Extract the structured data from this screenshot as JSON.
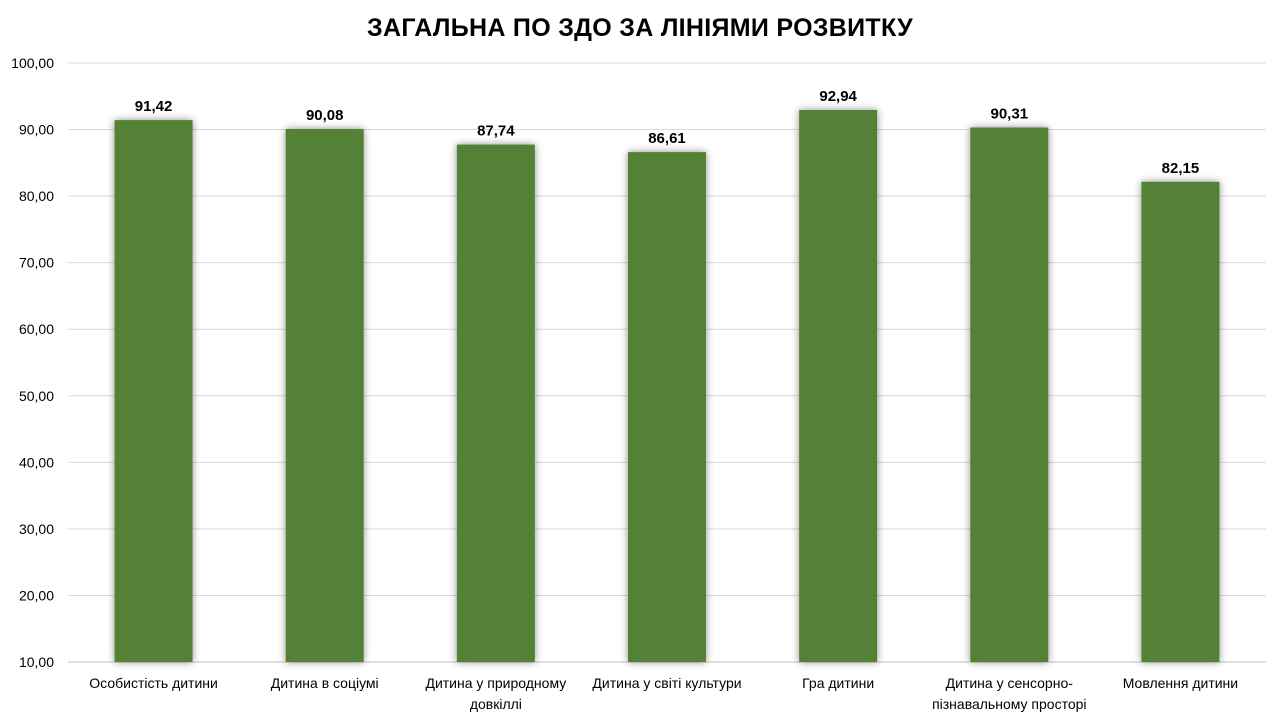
{
  "chart_data": {
    "type": "bar",
    "title": "ЗАГАЛЬНА ПО ЗДО ЗА ЛІНІЯМИ РОЗВИТКУ",
    "xlabel": "",
    "ylabel": "",
    "ylim": [
      10,
      100
    ],
    "yticks": [
      "10,00",
      "20,00",
      "30,00",
      "40,00",
      "50,00",
      "60,00",
      "70,00",
      "80,00",
      "90,00",
      "100,00"
    ],
    "grid": true,
    "legend": "none",
    "categories": [
      [
        "Особистість дитини"
      ],
      [
        "Дитина в соціумі"
      ],
      [
        "Дитина у природному",
        "довкіллі"
      ],
      [
        "Дитина у світі культури"
      ],
      [
        "Гра дитини"
      ],
      [
        "Дитина у сенсорно-",
        "пізнавальному просторі"
      ],
      [
        "Мовлення дитини"
      ]
    ],
    "values": [
      91.42,
      90.08,
      87.74,
      86.61,
      92.94,
      90.31,
      82.15
    ],
    "value_labels": [
      "91,42",
      "90,08",
      "87,74",
      "86,61",
      "92,94",
      "90,31",
      "82,15"
    ],
    "colors": {
      "bar": "#538135",
      "bar_shadow": "#bfbfbf"
    }
  }
}
